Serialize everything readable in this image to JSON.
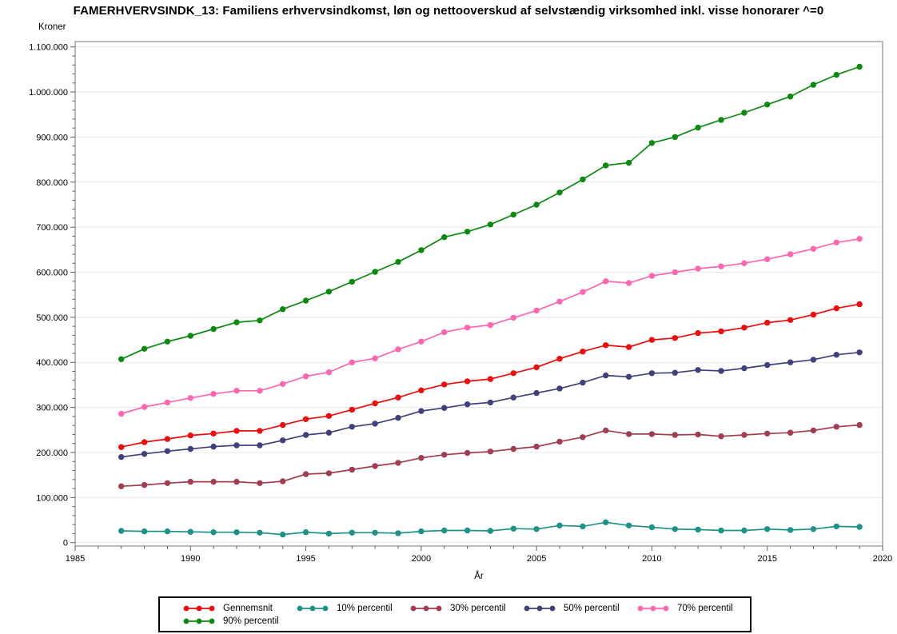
{
  "title": "FAMERHVERVSINDK_13: Familiens erhvervsindkomst, løn og nettooverskud af selvstændig virksomhed inkl. visse honorarer ^=0",
  "chart_data": {
    "type": "line",
    "title": "FAMERHVERVSINDK_13: Familiens erhvervsindkomst, løn og nettooverskud af selvstændig virksomhed inkl. visse honorarer ^=0",
    "xlabel": "År",
    "ylabel": "Kroner",
    "xlim": [
      1985,
      2020
    ],
    "ylim": [
      0,
      1100000
    ],
    "x_tick_step": 5,
    "x_minor_step": 1,
    "y_tick_step": 100000,
    "y_minor_step": 20000,
    "x_tick_labels": [
      "1985",
      "1990",
      "1995",
      "2000",
      "2005",
      "2010",
      "2015",
      "2020"
    ],
    "y_tick_labels": [
      "0",
      "100.000",
      "200.000",
      "300.000",
      "400.000",
      "500.000",
      "600.000",
      "700.000",
      "800.000",
      "900.000",
      "1.000.000",
      "1.100.000"
    ],
    "grid": "horizontal",
    "legend_position": "bottom",
    "marker": "circle",
    "x": [
      1987,
      1988,
      1989,
      1990,
      1991,
      1992,
      1993,
      1994,
      1995,
      1996,
      1997,
      1998,
      1999,
      2000,
      2001,
      2002,
      2003,
      2004,
      2005,
      2006,
      2007,
      2008,
      2009,
      2010,
      2011,
      2012,
      2013,
      2014,
      2015,
      2016,
      2017,
      2018,
      2019
    ],
    "series": [
      {
        "name": "Gennemsnit",
        "color": "#ee0c0c",
        "values": [
          212000,
          223000,
          230000,
          238000,
          242000,
          248000,
          248000,
          261000,
          274000,
          281000,
          295000,
          309000,
          322000,
          338000,
          351000,
          358000,
          363000,
          376000,
          389000,
          408000,
          424000,
          438000,
          434000,
          450000,
          454000,
          465000,
          469000,
          477000,
          488000,
          494000,
          506000,
          520000,
          529000
        ]
      },
      {
        "name": "10% percentil",
        "color": "#1d9388",
        "values": [
          26000,
          25000,
          25000,
          24000,
          23000,
          23000,
          22000,
          18000,
          23000,
          20000,
          22000,
          22000,
          21000,
          25000,
          27000,
          27000,
          26000,
          31000,
          30000,
          38000,
          36000,
          45000,
          38000,
          34000,
          30000,
          29000,
          27000,
          27000,
          30000,
          28000,
          30000,
          36000,
          35000
        ]
      },
      {
        "name": "30% percentil",
        "color": "#a23c50",
        "values": [
          125000,
          128000,
          132000,
          135000,
          135000,
          135000,
          132000,
          136000,
          152000,
          154000,
          162000,
          170000,
          177000,
          188000,
          195000,
          199000,
          202000,
          208000,
          213000,
          224000,
          234000,
          249000,
          241000,
          241000,
          239000,
          240000,
          236000,
          239000,
          242000,
          244000,
          249000,
          257000,
          261000
        ]
      },
      {
        "name": "50% percentil",
        "color": "#40407c",
        "values": [
          190000,
          197000,
          203000,
          208000,
          213000,
          216000,
          216000,
          227000,
          239000,
          244000,
          257000,
          264000,
          277000,
          292000,
          299000,
          307000,
          311000,
          322000,
          332000,
          342000,
          355000,
          371000,
          368000,
          376000,
          377000,
          383000,
          381000,
          387000,
          394000,
          400000,
          406000,
          417000,
          422000
        ]
      },
      {
        "name": "70% percentil",
        "color": "#ff66b0",
        "values": [
          286000,
          301000,
          311000,
          321000,
          330000,
          337000,
          337000,
          352000,
          369000,
          378000,
          400000,
          409000,
          429000,
          446000,
          467000,
          477000,
          483000,
          499000,
          515000,
          535000,
          556000,
          580000,
          576000,
          592000,
          600000,
          608000,
          613000,
          620000,
          629000,
          640000,
          652000,
          666000,
          674000
        ]
      },
      {
        "name": "90% percentil",
        "color": "#0b8a10",
        "values": [
          407000,
          430000,
          446000,
          459000,
          474000,
          489000,
          493000,
          518000,
          537000,
          557000,
          579000,
          601000,
          623000,
          649000,
          678000,
          690000,
          706000,
          728000,
          750000,
          777000,
          806000,
          837000,
          843000,
          887000,
          900000,
          921000,
          938000,
          954000,
          972000,
          990000,
          1016000,
          1038000,
          1056000
        ]
      }
    ],
    "colors": {
      "frame": "#8f8f8f",
      "grid": "#e8e8e8",
      "tick": "#5f5f5f",
      "text": "#000000"
    }
  }
}
